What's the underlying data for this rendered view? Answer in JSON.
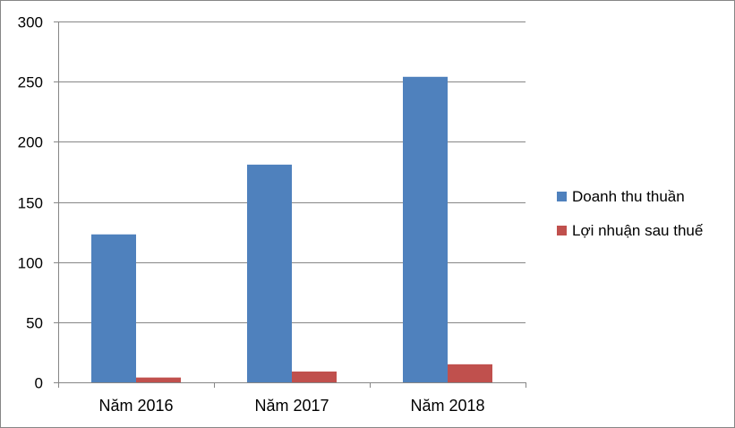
{
  "chart_data": {
    "type": "bar",
    "categories": [
      "Năm 2016",
      "Năm 2017",
      "Năm 2018"
    ],
    "series": [
      {
        "name": "Doanh thu thuần",
        "values": [
          123,
          181,
          254
        ],
        "color": "#4F81BD"
      },
      {
        "name": "Lợi nhuận sau thuế",
        "values": [
          4,
          9,
          15
        ],
        "color": "#C0504D"
      }
    ],
    "ylim": [
      0,
      300
    ],
    "yticks": [
      0,
      50,
      100,
      150,
      200,
      250,
      300
    ],
    "grid": true,
    "legend_position": "right"
  }
}
